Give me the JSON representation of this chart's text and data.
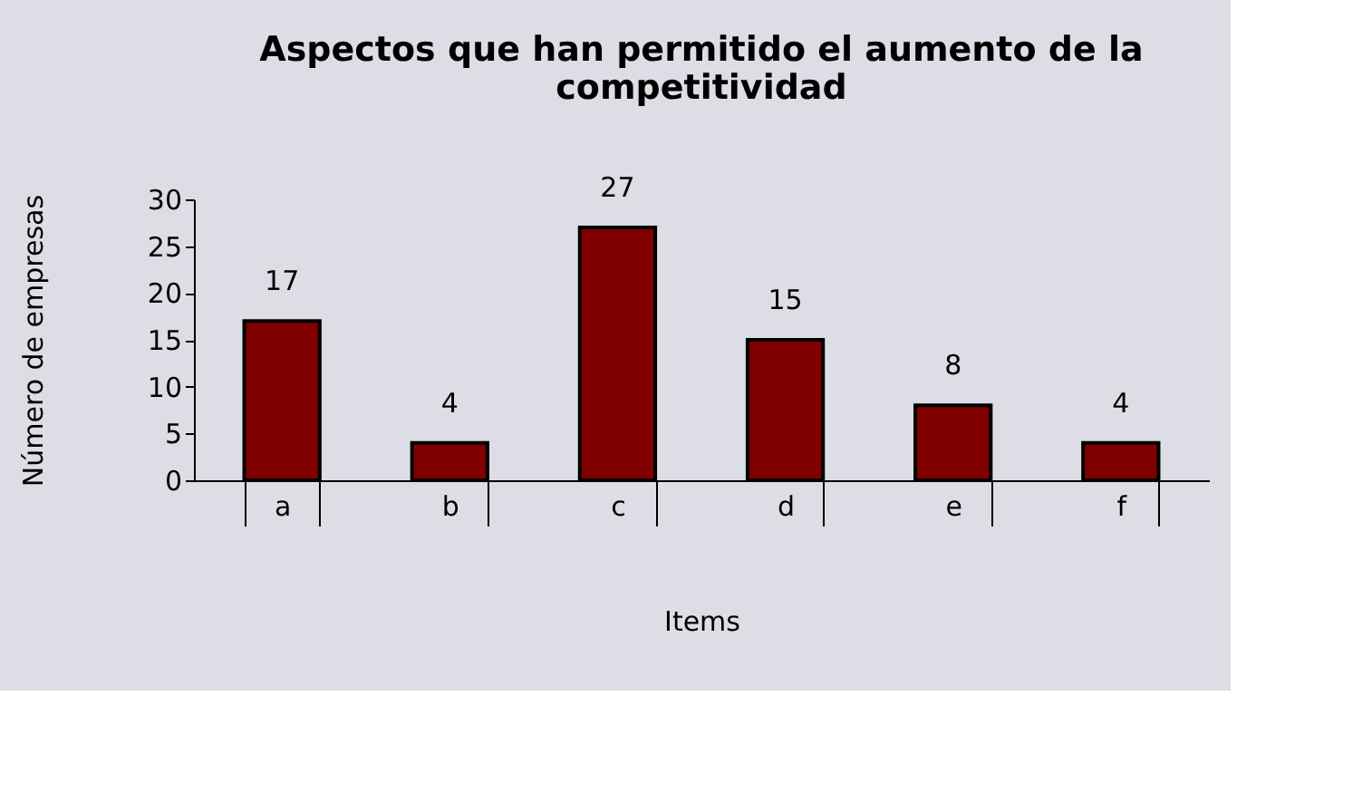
{
  "chart_data": {
    "type": "bar",
    "title": "Aspectos que han permitido el aumento de la competitividad",
    "xlabel": "Items",
    "ylabel": "Número de empresas",
    "categories": [
      "a",
      "b",
      "c",
      "d",
      "e",
      "f"
    ],
    "values": [
      17,
      4,
      27,
      15,
      8,
      4
    ],
    "color": "#800000",
    "ylim": [
      0,
      30
    ],
    "yticks": [
      0,
      5,
      10,
      15,
      20,
      25,
      30
    ],
    "grid": false,
    "data_labels": true
  }
}
